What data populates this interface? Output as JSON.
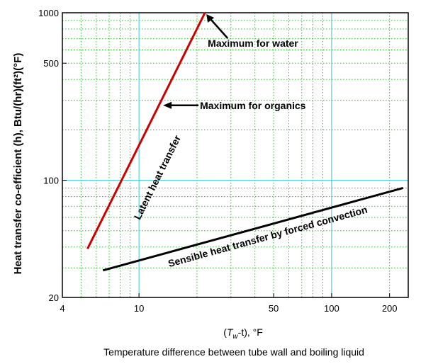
{
  "chart_data": {
    "type": "line",
    "x_scale": "log",
    "y_scale": "log",
    "xlim": [
      4,
      250
    ],
    "ylim": [
      20,
      1000
    ],
    "grid": true,
    "x_ticks": [
      {
        "value": 4,
        "label": "4"
      },
      {
        "value": 10,
        "label": "10"
      },
      {
        "value": 50,
        "label": "50"
      },
      {
        "value": 100,
        "label": "100"
      },
      {
        "value": 200,
        "label": "200"
      }
    ],
    "y_ticks": [
      {
        "value": 20,
        "label": "20"
      },
      {
        "value": 100,
        "label": "100"
      },
      {
        "value": 500,
        "label": "500"
      },
      {
        "value": 1000,
        "label": "1000"
      }
    ],
    "xlabel": {
      "prefix": "(",
      "var": "T",
      "sub": "w",
      "rest": "-t), °F"
    },
    "ylabel": "Heat transfer co-efficient (h), Btu/(hr)(ft²)(°F)",
    "caption": "Temperature difference between tube wall and boiling liquid",
    "series": [
      {
        "name": "Latent heat transfer",
        "color": "#cc0000",
        "x": [
          5.4,
          22
        ],
        "y": [
          39,
          1000
        ]
      },
      {
        "name": "Sensible heat transfer by forced convection",
        "color": "#000000",
        "x": [
          6.5,
          235
        ],
        "y": [
          29,
          90
        ]
      }
    ],
    "annotations": [
      {
        "text": "Maximum for water",
        "x": 22,
        "y": 1000
      },
      {
        "text": "Maximum for organics",
        "x": 13,
        "y": 280
      }
    ]
  }
}
